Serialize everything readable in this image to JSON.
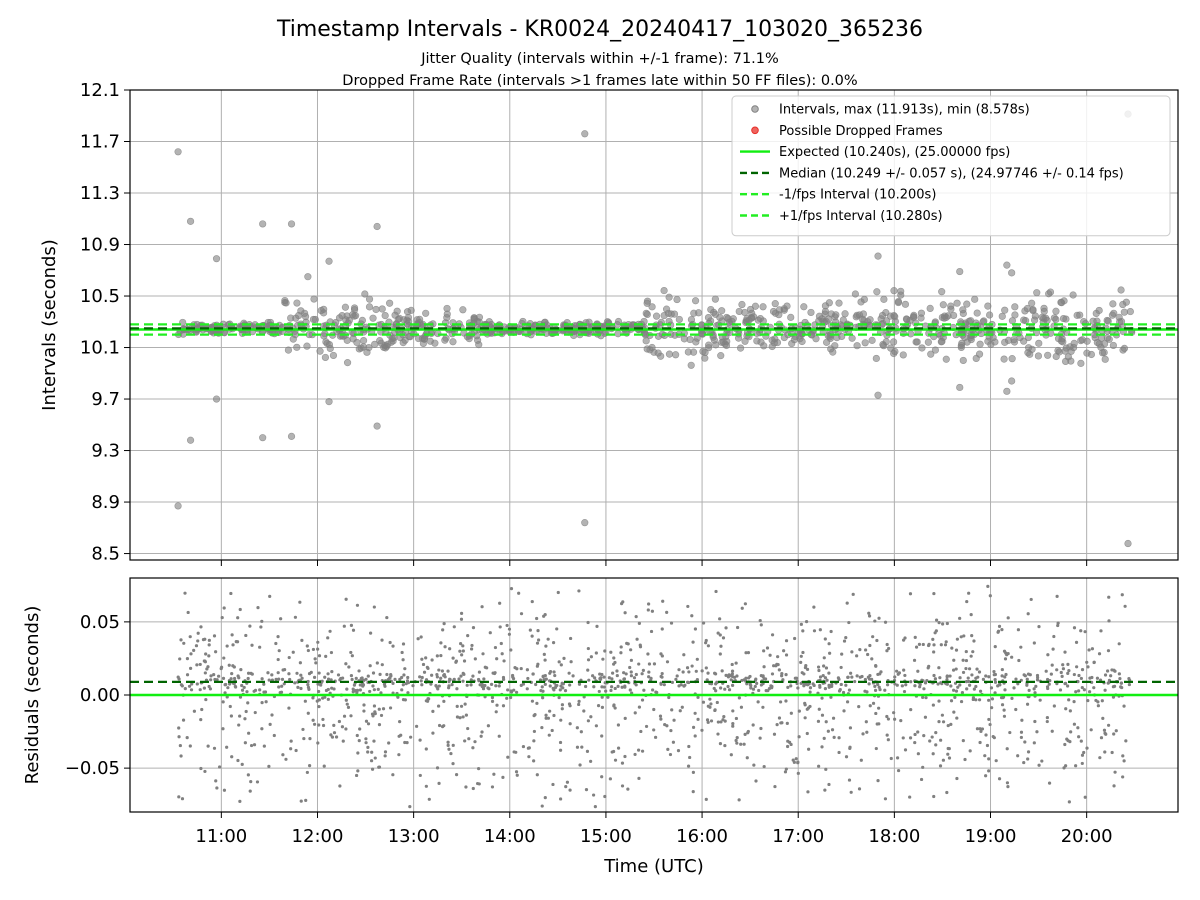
{
  "header": {
    "title": "Timestamp Intervals - KR0024_20240417_103020_365236",
    "subtitle_1": "Jitter Quality (intervals within +/-1 frame): 71.1%",
    "subtitle_2": "Dropped Frame Rate (intervals >1 frames late within 50 FF files): 0.0%"
  },
  "colors": {
    "points": "#808080",
    "dropped": "#e8302a",
    "expected": "#11ee11",
    "median": "#006400",
    "interval_bands": "#22ee22",
    "grid": "#b0b0b0"
  },
  "chart_data": [
    {
      "type": "scatter",
      "name": "intervals-panel",
      "ylabel": "Intervals (seconds)",
      "xlabel": "",
      "x_unit": "hours UTC",
      "xlim": [
        10.05,
        20.95
      ],
      "ylim": [
        8.45,
        12.1
      ],
      "yticks": [
        8.5,
        8.9,
        9.3,
        9.7,
        10.1,
        10.5,
        10.9,
        11.3,
        11.7,
        12.1
      ],
      "ytick_labels": [
        "8.5",
        "8.9",
        "9.3",
        "9.7",
        "10.1",
        "10.5",
        "10.9",
        "11.3",
        "11.7",
        "12.1"
      ],
      "grid": true,
      "legend_position": "top-right",
      "legend": [
        {
          "label": "Intervals, max (11.913s), min (8.578s)",
          "kind": "point-gray"
        },
        {
          "label": "Possible Dropped Frames",
          "kind": "point-red"
        },
        {
          "label": "Expected (10.240s), (25.00000 fps)",
          "kind": "line-expected"
        },
        {
          "label": "Median (10.249 +/- 0.057 s), (24.97746 +/- 0.14 fps)",
          "kind": "line-median"
        },
        {
          "label": "-1/fps Interval (10.200s)",
          "kind": "line-minus"
        },
        {
          "label": "+1/fps Interval (10.280s)",
          "kind": "line-plus"
        }
      ],
      "expected": 10.24,
      "median": 10.249,
      "minus_interval": 10.2,
      "plus_interval": 10.28,
      "median_std": 0.057,
      "dropped_frames": [],
      "outliers": [
        {
          "x": 10.55,
          "y": 11.62
        },
        {
          "x": 10.68,
          "y": 11.08
        },
        {
          "x": 10.95,
          "y": 10.79
        },
        {
          "x": 10.95,
          "y": 9.7
        },
        {
          "x": 10.68,
          "y": 9.38
        },
        {
          "x": 10.55,
          "y": 8.87
        },
        {
          "x": 11.43,
          "y": 11.06
        },
        {
          "x": 11.43,
          "y": 9.4
        },
        {
          "x": 11.73,
          "y": 11.06
        },
        {
          "x": 11.73,
          "y": 9.41
        },
        {
          "x": 12.62,
          "y": 11.04
        },
        {
          "x": 12.62,
          "y": 9.49
        },
        {
          "x": 12.12,
          "y": 10.77
        },
        {
          "x": 12.12,
          "y": 9.68
        },
        {
          "x": 11.9,
          "y": 10.65
        },
        {
          "x": 14.78,
          "y": 11.76
        },
        {
          "x": 14.78,
          "y": 8.74
        },
        {
          "x": 17.83,
          "y": 10.81
        },
        {
          "x": 17.83,
          "y": 9.73
        },
        {
          "x": 18.68,
          "y": 10.69
        },
        {
          "x": 18.68,
          "y": 9.79
        },
        {
          "x": 19.17,
          "y": 10.74
        },
        {
          "x": 19.17,
          "y": 9.76
        },
        {
          "x": 19.22,
          "y": 9.84
        },
        {
          "x": 19.22,
          "y": 10.68
        },
        {
          "x": 20.43,
          "y": 11.913
        },
        {
          "x": 20.43,
          "y": 8.578
        }
      ],
      "bulk_envelope": [
        {
          "from": 10.55,
          "to": 11.65,
          "spread": 0.05
        },
        {
          "from": 11.65,
          "to": 12.8,
          "spread": 0.28
        },
        {
          "from": 12.8,
          "to": 13.7,
          "spread": 0.16
        },
        {
          "from": 13.7,
          "to": 15.4,
          "spread": 0.06
        },
        {
          "from": 15.4,
          "to": 16.2,
          "spread": 0.3
        },
        {
          "from": 16.2,
          "to": 17.3,
          "spread": 0.2
        },
        {
          "from": 17.3,
          "to": 18.6,
          "spread": 0.3
        },
        {
          "from": 18.6,
          "to": 19.4,
          "spread": 0.25
        },
        {
          "from": 19.4,
          "to": 20.48,
          "spread": 0.3
        }
      ]
    },
    {
      "type": "scatter",
      "name": "residuals-panel",
      "ylabel": "Residuals (seconds)",
      "xlabel": "Time (UTC)",
      "x_unit": "hours UTC",
      "xlim": [
        10.05,
        20.95
      ],
      "ylim": [
        -0.08,
        0.08
      ],
      "yticks": [
        -0.05,
        0.0,
        0.05
      ],
      "ytick_labels": [
        "−0.05",
        "0.00",
        "0.05"
      ],
      "xticks": [
        11,
        12,
        13,
        14,
        15,
        16,
        17,
        18,
        19,
        20
      ],
      "xtick_labels": [
        "11:00",
        "12:00",
        "13:00",
        "14:00",
        "15:00",
        "16:00",
        "17:00",
        "18:00",
        "19:00",
        "20:00"
      ],
      "grid": true,
      "zero_line": 0.0,
      "median_offset": 0.009,
      "x_range": [
        10.55,
        20.45
      ],
      "point_count": 1750
    }
  ]
}
